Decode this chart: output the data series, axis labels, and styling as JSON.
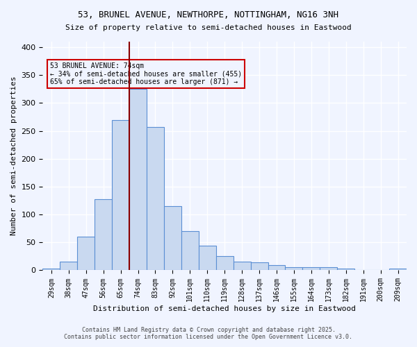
{
  "title_line1": "53, BRUNEL AVENUE, NEWTHORPE, NOTTINGHAM, NG16 3NH",
  "title_line2": "Size of property relative to semi-detached houses in Eastwood",
  "xlabel": "Distribution of semi-detached houses by size in Eastwood",
  "ylabel": "Number of semi-detached properties",
  "bar_labels": [
    "29sqm",
    "38sqm",
    "47sqm",
    "56sqm",
    "65sqm",
    "74sqm",
    "83sqm",
    "92sqm",
    "101sqm",
    "110sqm",
    "119sqm",
    "128sqm",
    "137sqm",
    "146sqm",
    "155sqm",
    "164sqm",
    "173sqm",
    "182sqm",
    "191sqm",
    "200sqm",
    "209sqm"
  ],
  "bar_values": [
    3,
    15,
    60,
    127,
    270,
    325,
    257,
    115,
    70,
    44,
    25,
    15,
    14,
    9,
    6,
    5,
    5,
    3,
    0,
    0,
    3
  ],
  "property_size": 74,
  "property_label": "53 BRUNEL AVENUE: 74sqm",
  "pct_smaller": 34,
  "pct_larger": 65,
  "count_smaller": 455,
  "count_larger": 871,
  "bar_color": "#c9d9f0",
  "bar_edge_color": "#5b8fd4",
  "highlight_line_color": "#8b0000",
  "annotation_box_edge": "#cc0000",
  "background_color": "#f0f4ff",
  "grid_color": "#ffffff",
  "footnote_line1": "Contains HM Land Registry data © Crown copyright and database right 2025.",
  "footnote_line2": "Contains public sector information licensed under the Open Government Licence v3.0.",
  "ylim": [
    0,
    410
  ],
  "bin_width": 9
}
